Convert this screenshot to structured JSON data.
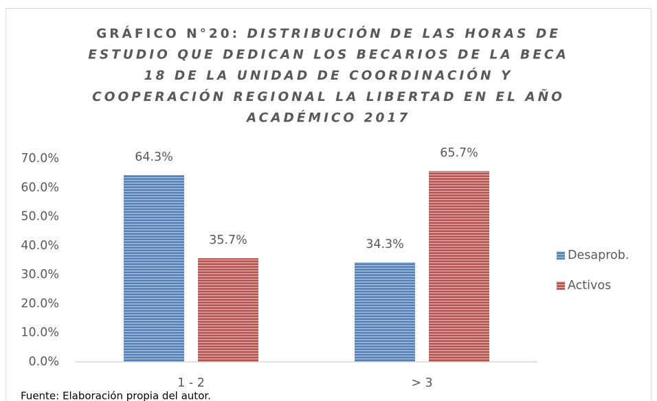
{
  "chart_data": {
    "type": "bar",
    "title_prefix": "GRÁFICO N°20:",
    "title_lines": [
      "DISTRIBUCIÓN DE LAS HORAS DE",
      "ESTUDIO QUE DEDICAN LOS BECARIOS DE LA BECA",
      "18 DE LA UNIDAD DE COORDINACIÓN Y",
      "COOPERACIÓN REGIONAL LA LIBERTAD EN EL AÑO",
      "ACADÉMICO 2017"
    ],
    "categories": [
      "1 - 2",
      "> 3"
    ],
    "series": [
      {
        "name": "Desaprob.",
        "color": "#4f81bd",
        "values": [
          64.3,
          34.3
        ],
        "value_labels": [
          "64.3%",
          "34.3%"
        ]
      },
      {
        "name": "Activos",
        "color": "#c0504d",
        "values": [
          35.7,
          65.7
        ],
        "value_labels": [
          "35.7%",
          "65.7%"
        ]
      }
    ],
    "ylim": [
      0,
      70
    ],
    "yticks": [
      {
        "value": 0,
        "label": "0.0%"
      },
      {
        "value": 10,
        "label": "10.0%"
      },
      {
        "value": 20,
        "label": "20.0%"
      },
      {
        "value": 30,
        "label": "30.0%"
      },
      {
        "value": 40,
        "label": "40.0%"
      },
      {
        "value": 50,
        "label": "50.0%"
      },
      {
        "value": 60,
        "label": "60.0%"
      },
      {
        "value": 70,
        "label": "70.0%"
      }
    ],
    "grid": false,
    "legend": "right",
    "pattern": "horizontal-stripes",
    "source_note": "Fuente: Elaboración propia del autor."
  }
}
